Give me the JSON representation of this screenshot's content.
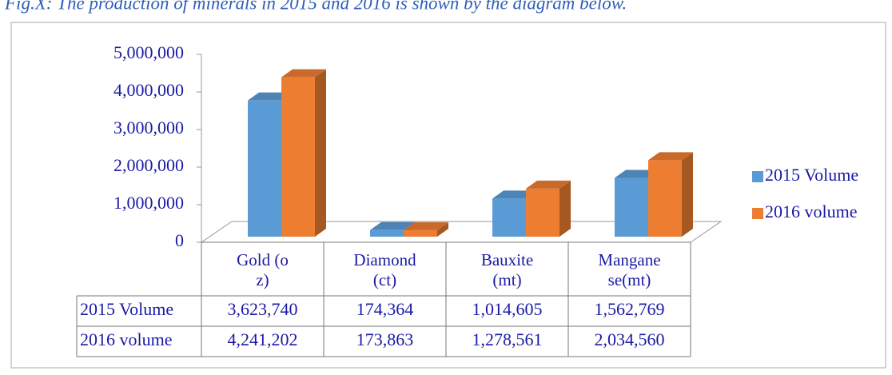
{
  "chart_data": {
    "type": "bar3d",
    "title": "Fig.X: The production of minerals in 2015 and 2016 is shown by the diagram below.",
    "categories": [
      "Gold (oz)",
      "Diamond(ct)",
      "Bauxite(mt)",
      "Manganese(mt)"
    ],
    "series": [
      {
        "name": "2015 Volume",
        "color": "#5b9bd5",
        "values": [
          3623740,
          174364,
          1014605,
          1562769
        ],
        "value_labels": [
          "3,623,740",
          "174,364",
          "1,014,605",
          "1,562,769"
        ]
      },
      {
        "name": "2016 volume",
        "color": "#ed7d31",
        "values": [
          4241202,
          173863,
          1278561,
          2034560
        ],
        "value_labels": [
          "4,241,202",
          "173,863",
          "1,278,561",
          "2,034,560"
        ]
      }
    ],
    "ylim": [
      0,
      5000000
    ],
    "yticks": [
      0,
      {
        "value": 1000000,
        "label": "1,000,000"
      },
      {
        "value": 2000000,
        "label": "2,000,000"
      },
      {
        "value": 3000000,
        "label": "3,000,000"
      },
      {
        "value": 4000000,
        "label": "4,000,000"
      },
      {
        "value": 5000000,
        "label": "5,000,000"
      }
    ],
    "legend": "right"
  }
}
